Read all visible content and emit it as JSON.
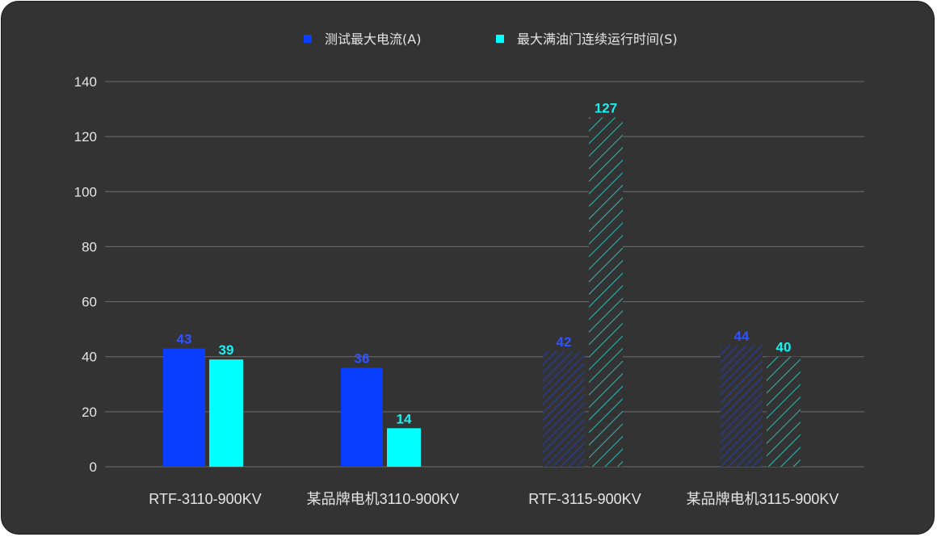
{
  "chart_data": {
    "type": "bar",
    "categories": [
      "RTF-3110-900KV",
      "某品牌电机3110-900KV",
      "RTF-3115-900KV",
      "某品牌电机3115-900KV"
    ],
    "series": [
      {
        "name": "测试最大电流(A)",
        "values": [
          43,
          36,
          42,
          44
        ],
        "color": "#0a3eff"
      },
      {
        "name": "最大满油门连续运行时间(S)",
        "values": [
          39,
          14,
          127,
          40
        ],
        "color": "#00ffff"
      }
    ],
    "hatched_categories": [
      "RTF-3115-900KV",
      "某品牌电机3115-900KV"
    ],
    "yticks": [
      0,
      20,
      40,
      60,
      80,
      100,
      120,
      140
    ],
    "ylim": [
      0,
      140
    ],
    "legend_position": "top-center",
    "grid": true
  }
}
